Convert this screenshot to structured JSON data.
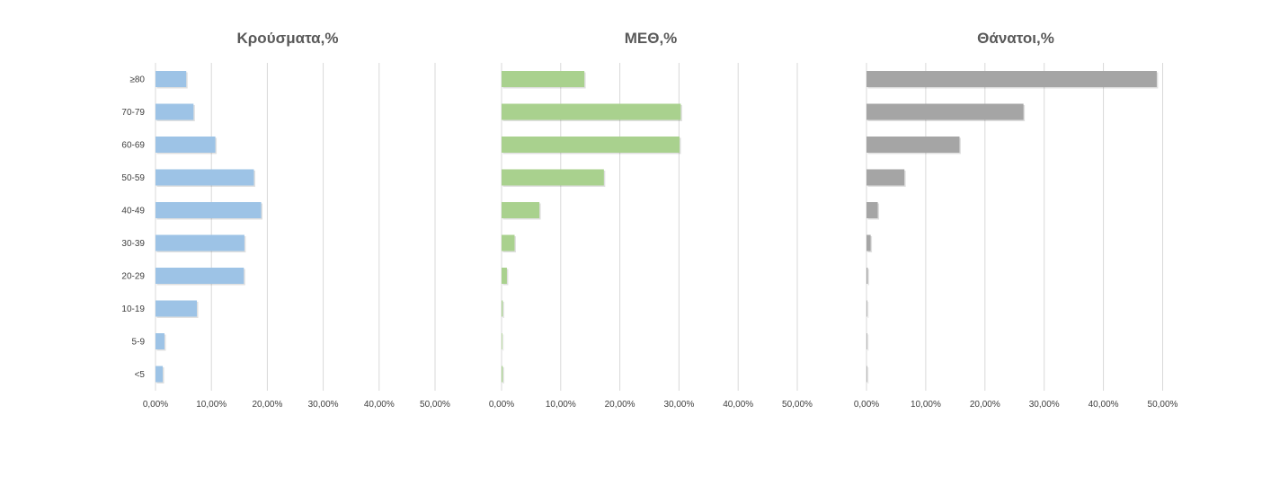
{
  "chart_data": [
    {
      "type": "bar",
      "orientation": "horizontal",
      "title": "Κρούσματα,%",
      "categories": [
        "≥80",
        "70-79",
        "60-69",
        "50-59",
        "40-49",
        "30-39",
        "20-29",
        "10-19",
        "5-9",
        "<5"
      ],
      "values": [
        5.5,
        6.8,
        10.7,
        17.6,
        18.9,
        15.9,
        15.8,
        7.4,
        1.6,
        1.3
      ],
      "xlim": [
        0,
        50
      ],
      "ticks": [
        "0,00%",
        "10,00%",
        "20,00%",
        "30,00%",
        "40,00%",
        "50,00%"
      ],
      "grid": true,
      "legend": "none",
      "color": "#9dc3e6"
    },
    {
      "type": "bar",
      "orientation": "horizontal",
      "title": "ΜΕΘ,%",
      "categories": [
        "≥80",
        "70-79",
        "60-69",
        "50-59",
        "40-49",
        "30-39",
        "20-29",
        "10-19",
        "5-9",
        "<5"
      ],
      "values": [
        14.0,
        30.3,
        30.1,
        17.3,
        6.4,
        2.2,
        0.9,
        0.2,
        0.1,
        0.2
      ],
      "xlim": [
        0,
        50
      ],
      "ticks": [
        "0,00%",
        "10,00%",
        "20,00%",
        "30,00%",
        "40,00%",
        "50,00%"
      ],
      "grid": true,
      "legend": "none",
      "color": "#a9d18e"
    },
    {
      "type": "bar",
      "orientation": "horizontal",
      "title": "Θάνατοι,%",
      "categories": [
        "≥80",
        "70-79",
        "60-69",
        "50-59",
        "40-49",
        "30-39",
        "20-29",
        "10-19",
        "5-9",
        "<5"
      ],
      "values": [
        49.0,
        26.5,
        15.7,
        6.4,
        1.9,
        0.7,
        0.2,
        0.0,
        0.0,
        0.0
      ],
      "xlim": [
        0,
        50
      ],
      "ticks": [
        "0,00%",
        "10,00%",
        "20,00%",
        "30,00%",
        "40,00%",
        "50,00%"
      ],
      "grid": true,
      "legend": "none",
      "color": "#a5a5a5"
    }
  ]
}
